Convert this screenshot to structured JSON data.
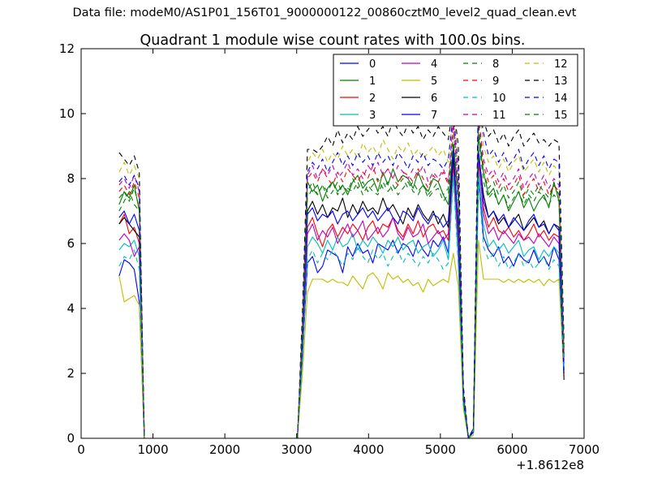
{
  "figure": {
    "suptitle": "Data file: modeM0/AS1P01_156T01_9000000122_00860cztM0_level2_quad_clean.evt"
  },
  "chart_data": {
    "type": "line",
    "title": "Quadrant 1 module wise count rates with 100.0s bins.",
    "xlabel": "",
    "ylabel": "",
    "x_offset_label": "+1.8612e8",
    "xlim": [
      0,
      7000
    ],
    "ylim": [
      0,
      12
    ],
    "xticks": [
      0,
      1000,
      2000,
      3000,
      4000,
      5000,
      6000,
      7000
    ],
    "xtick_labels": [
      "0",
      "1000",
      "2000",
      "3000",
      "4000",
      "5000",
      "6000",
      "7000"
    ],
    "yticks": [
      0,
      2,
      4,
      6,
      8,
      10,
      12
    ],
    "ytick_labels": [
      "0",
      "2",
      "4",
      "6",
      "8",
      "10",
      "12"
    ],
    "grid": false,
    "legend_position": "top-right",
    "legend_columns": 4,
    "x": [
      530,
      600,
      670,
      740,
      810,
      880,
      950,
      1050,
      3010,
      3080,
      3150,
      3220,
      3290,
      3360,
      3430,
      3500,
      3570,
      3640,
      3710,
      3780,
      3850,
      3920,
      3990,
      4060,
      4130,
      4200,
      4270,
      4340,
      4410,
      4480,
      4550,
      4620,
      4690,
      4760,
      4830,
      4900,
      4970,
      5040,
      5110,
      5180,
      5250,
      5320,
      5390,
      5460,
      5530,
      5600,
      5670,
      5740,
      5810,
      5880,
      5950,
      6020,
      6090,
      6160,
      6230,
      6300,
      6370,
      6440,
      6510,
      6580,
      6650,
      6720
    ],
    "series": [
      {
        "name": "0",
        "color": "#0000ff",
        "dash": "solid",
        "values": [
          5.0,
          5.5,
          5.4,
          5.2,
          4.2,
          0.0,
          0.0,
          0.0,
          0.0,
          2.5,
          5.4,
          5.6,
          5.1,
          5.3,
          5.8,
          5.7,
          5.6,
          5.1,
          5.9,
          5.6,
          6.0,
          5.7,
          5.8,
          5.4,
          6.0,
          5.9,
          5.8,
          6.1,
          5.7,
          6.0,
          5.9,
          5.6,
          6.1,
          5.8,
          5.6,
          6.1,
          5.9,
          6.2,
          5.7,
          8.8,
          5.5,
          1.0,
          0.0,
          0.2,
          8.0,
          6.2,
          5.8,
          5.6,
          5.9,
          5.4,
          5.6,
          5.3,
          5.7,
          5.5,
          5.4,
          5.8,
          5.4,
          5.6,
          5.3,
          5.9,
          5.5,
          2.0
        ]
      },
      {
        "name": "1",
        "color": "#008000",
        "dash": "solid",
        "values": [
          7.2,
          7.6,
          7.4,
          7.8,
          7.0,
          0.0,
          0.0,
          0.0,
          0.0,
          3.2,
          7.9,
          7.6,
          7.8,
          7.3,
          7.7,
          7.9,
          7.6,
          7.8,
          7.5,
          7.9,
          8.1,
          7.7,
          7.9,
          8.0,
          7.6,
          8.2,
          7.8,
          8.3,
          7.9,
          8.1,
          8.0,
          7.7,
          8.2,
          7.8,
          7.6,
          8.0,
          7.9,
          7.5,
          7.2,
          9.0,
          7.4,
          1.3,
          0.0,
          0.3,
          9.3,
          8.2,
          7.5,
          7.7,
          7.2,
          7.5,
          7.0,
          7.3,
          7.6,
          7.1,
          7.4,
          7.0,
          7.3,
          7.5,
          7.1,
          7.9,
          7.3,
          2.5
        ]
      },
      {
        "name": "2",
        "color": "#ff0000",
        "dash": "solid",
        "values": [
          6.6,
          6.9,
          6.3,
          6.5,
          6.0,
          0.0,
          0.0,
          0.0,
          0.0,
          2.8,
          6.5,
          6.8,
          6.3,
          5.9,
          6.4,
          6.6,
          6.2,
          6.5,
          6.3,
          6.6,
          6.4,
          6.1,
          6.5,
          6.7,
          6.3,
          6.6,
          6.5,
          6.8,
          6.4,
          6.2,
          6.6,
          6.3,
          6.7,
          6.2,
          6.5,
          6.6,
          6.3,
          6.4,
          6.1,
          8.4,
          6.2,
          1.2,
          0.0,
          0.2,
          8.5,
          7.1,
          6.5,
          6.8,
          6.4,
          6.3,
          6.5,
          6.2,
          6.4,
          6.1,
          6.3,
          6.6,
          6.2,
          6.4,
          6.1,
          6.3,
          6.2,
          2.4
        ]
      },
      {
        "name": "3",
        "color": "#00bfbf",
        "dash": "solid",
        "values": [
          5.8,
          6.0,
          5.9,
          6.1,
          5.6,
          0.0,
          0.0,
          0.0,
          0.0,
          2.6,
          5.9,
          6.2,
          6.0,
          5.7,
          6.1,
          5.8,
          6.2,
          5.9,
          6.0,
          6.3,
          5.8,
          6.1,
          5.9,
          6.2,
          6.0,
          5.7,
          6.1,
          5.9,
          6.2,
          5.8,
          6.0,
          6.1,
          5.7,
          5.9,
          6.0,
          5.6,
          5.8,
          6.1,
          5.5,
          8.1,
          5.6,
          1.1,
          0.0,
          0.2,
          8.2,
          6.6,
          5.9,
          6.1,
          5.8,
          6.0,
          5.7,
          5.9,
          6.1,
          5.6,
          5.8,
          5.9,
          5.5,
          5.8,
          5.6,
          5.9,
          5.7,
          2.2
        ]
      },
      {
        "name": "4",
        "color": "#bf00bf",
        "dash": "solid",
        "values": [
          6.1,
          6.3,
          6.1,
          5.6,
          5.9,
          0.0,
          0.0,
          0.0,
          0.0,
          2.7,
          6.3,
          6.6,
          6.1,
          6.4,
          6.2,
          6.5,
          6.0,
          6.3,
          6.6,
          6.2,
          6.4,
          6.7,
          6.1,
          6.3,
          6.5,
          6.2,
          6.4,
          6.8,
          6.3,
          6.1,
          6.5,
          6.2,
          6.3,
          6.6,
          6.0,
          6.2,
          6.4,
          6.1,
          6.3,
          8.6,
          6.0,
          1.2,
          0.0,
          0.2,
          8.7,
          6.9,
          6.3,
          6.5,
          6.1,
          6.4,
          6.2,
          6.0,
          6.3,
          6.1,
          6.2,
          6.0,
          6.3,
          6.1,
          5.9,
          6.2,
          6.0,
          2.3
        ]
      },
      {
        "name": "5",
        "color": "#bfbf00",
        "dash": "solid",
        "values": [
          5.0,
          4.2,
          4.3,
          4.4,
          4.1,
          0.0,
          0.0,
          0.0,
          0.0,
          2.0,
          4.5,
          4.9,
          4.9,
          4.9,
          4.8,
          4.9,
          4.8,
          4.8,
          4.7,
          5.0,
          4.8,
          4.6,
          5.0,
          5.1,
          4.9,
          4.6,
          5.1,
          4.9,
          5.0,
          4.8,
          4.9,
          4.7,
          4.8,
          4.5,
          4.9,
          4.7,
          4.8,
          4.9,
          4.8,
          5.7,
          4.7,
          0.9,
          0.0,
          0.1,
          6.1,
          4.9,
          4.9,
          4.9,
          4.9,
          4.8,
          4.9,
          4.8,
          4.9,
          4.8,
          4.9,
          4.8,
          4.9,
          4.7,
          4.9,
          4.8,
          4.9,
          1.9
        ]
      },
      {
        "name": "6",
        "color": "#000000",
        "dash": "solid",
        "values": [
          6.6,
          6.8,
          6.6,
          6.4,
          6.2,
          0.0,
          0.0,
          0.0,
          0.0,
          3.0,
          7.0,
          7.3,
          6.9,
          7.2,
          6.8,
          7.1,
          7.0,
          7.4,
          6.8,
          7.2,
          6.9,
          7.3,
          7.0,
          7.1,
          6.9,
          7.4,
          7.0,
          7.2,
          6.9,
          6.6,
          7.1,
          6.8,
          7.2,
          6.9,
          6.7,
          7.0,
          6.6,
          6.9,
          6.5,
          8.7,
          6.6,
          1.2,
          0.0,
          0.2,
          8.8,
          7.5,
          6.8,
          7.0,
          6.6,
          6.8,
          6.5,
          6.7,
          6.9,
          6.4,
          6.6,
          6.8,
          6.5,
          6.7,
          6.3,
          6.6,
          6.5,
          1.8
        ]
      },
      {
        "name": "7",
        "color": "#0000ff",
        "dash": "solid",
        "values": [
          6.8,
          7.0,
          6.6,
          6.9,
          6.4,
          0.0,
          0.0,
          0.0,
          0.0,
          3.0,
          6.9,
          7.1,
          6.7,
          6.9,
          6.8,
          7.0,
          6.6,
          6.9,
          7.0,
          6.7,
          6.9,
          7.1,
          6.8,
          7.0,
          6.7,
          6.9,
          7.1,
          6.8,
          6.6,
          7.0,
          6.9,
          6.7,
          7.1,
          6.8,
          6.6,
          6.9,
          6.8,
          6.5,
          6.7,
          8.9,
          6.5,
          1.2,
          0.0,
          0.2,
          8.9,
          7.3,
          6.8,
          7.0,
          6.7,
          6.9,
          6.5,
          6.8,
          6.6,
          6.4,
          6.7,
          6.9,
          6.5,
          6.6,
          6.3,
          6.6,
          6.4,
          2.1
        ]
      },
      {
        "name": "8",
        "color": "#008000",
        "dash": "dashed",
        "values": [
          7.0,
          7.3,
          7.6,
          7.2,
          7.0,
          0.0,
          0.0,
          0.0,
          0.0,
          3.2,
          7.4,
          7.7,
          7.5,
          7.8,
          7.4,
          7.6,
          7.9,
          7.5,
          7.7,
          7.6,
          7.9,
          7.5,
          7.8,
          7.6,
          7.5,
          7.9,
          7.6,
          7.8,
          7.5,
          7.7,
          7.9,
          7.6,
          7.5,
          7.8,
          7.4,
          7.6,
          7.7,
          7.3,
          7.5,
          9.1,
          7.2,
          1.3,
          0.0,
          0.3,
          9.3,
          7.9,
          7.4,
          7.6,
          7.2,
          7.5,
          7.1,
          7.4,
          7.6,
          7.2,
          7.5,
          7.3,
          7.6,
          7.4,
          7.2,
          7.5,
          7.3,
          2.6
        ]
      },
      {
        "name": "9",
        "color": "#ff0000",
        "dash": "dashed",
        "values": [
          7.6,
          7.8,
          7.5,
          7.9,
          7.4,
          0.0,
          0.0,
          0.0,
          0.0,
          3.4,
          8.0,
          8.2,
          7.9,
          8.3,
          8.0,
          7.8,
          8.2,
          7.9,
          8.3,
          8.1,
          7.9,
          8.2,
          8.0,
          8.4,
          7.9,
          8.1,
          8.3,
          8.0,
          7.8,
          8.2,
          8.1,
          7.9,
          8.3,
          8.0,
          7.7,
          8.1,
          7.9,
          8.2,
          7.8,
          9.6,
          7.7,
          1.4,
          0.0,
          0.3,
          9.7,
          8.4,
          7.9,
          8.1,
          7.7,
          8.0,
          7.6,
          7.8,
          8.1,
          7.5,
          7.8,
          8.0,
          7.6,
          7.9,
          7.5,
          7.8,
          7.6,
          2.7
        ]
      },
      {
        "name": "10",
        "color": "#00bfbf",
        "dash": "dashed",
        "values": [
          5.3,
          5.6,
          5.5,
          5.8,
          5.2,
          0.0,
          0.0,
          0.0,
          0.0,
          2.4,
          5.5,
          5.8,
          5.4,
          5.7,
          5.5,
          5.8,
          5.6,
          5.3,
          5.7,
          5.5,
          5.9,
          5.6,
          5.4,
          5.8,
          5.5,
          5.7,
          5.3,
          5.6,
          5.8,
          5.4,
          5.7,
          5.5,
          5.3,
          5.6,
          5.4,
          5.7,
          5.5,
          5.2,
          5.4,
          8.0,
          5.3,
          1.0,
          0.0,
          0.2,
          8.0,
          5.9,
          5.5,
          5.7,
          5.3,
          5.6,
          5.2,
          5.4,
          5.7,
          5.3,
          5.5,
          5.2,
          5.4,
          5.6,
          5.2,
          5.5,
          5.3,
          2.1
        ]
      },
      {
        "name": "11",
        "color": "#bf00bf",
        "dash": "dashed",
        "values": [
          7.8,
          8.0,
          7.7,
          8.1,
          7.6,
          0.0,
          0.0,
          0.0,
          0.0,
          3.5,
          8.1,
          8.4,
          8.0,
          8.3,
          8.1,
          8.4,
          8.0,
          8.2,
          8.5,
          8.1,
          8.3,
          8.0,
          8.4,
          8.2,
          8.5,
          8.1,
          8.3,
          8.0,
          8.4,
          8.2,
          8.0,
          8.3,
          8.1,
          8.4,
          7.9,
          8.2,
          8.0,
          8.3,
          7.9,
          9.8,
          7.8,
          1.4,
          0.0,
          0.3,
          9.9,
          8.6,
          8.1,
          8.3,
          7.9,
          8.2,
          7.8,
          8.0,
          8.3,
          7.7,
          8.0,
          8.2,
          7.8,
          8.1,
          7.7,
          8.0,
          7.8,
          2.8
        ]
      },
      {
        "name": "12",
        "color": "#bfbf00",
        "dash": "dashed",
        "values": [
          8.2,
          8.5,
          8.1,
          8.4,
          8.0,
          0.0,
          0.0,
          0.0,
          0.0,
          3.7,
          8.5,
          8.8,
          8.6,
          8.9,
          8.5,
          8.8,
          8.6,
          9.0,
          8.7,
          8.9,
          8.6,
          9.1,
          8.8,
          9.0,
          8.7,
          9.2,
          8.9,
          8.6,
          9.0,
          8.8,
          9.1,
          8.7,
          8.9,
          8.6,
          8.8,
          9.0,
          8.7,
          8.9,
          8.5,
          10.2,
          8.4,
          1.5,
          0.0,
          0.3,
          10.5,
          9.0,
          8.5,
          8.7,
          8.3,
          8.6,
          8.2,
          8.5,
          8.7,
          8.2,
          8.4,
          8.6,
          8.2,
          8.5,
          8.1,
          8.4,
          8.2,
          2.9
        ]
      },
      {
        "name": "13",
        "color": "#000000",
        "dash": "dashed",
        "values": [
          8.8,
          8.6,
          8.4,
          8.7,
          8.2,
          0.0,
          0.0,
          0.0,
          0.0,
          3.9,
          8.9,
          8.9,
          8.8,
          9.0,
          9.3,
          9.0,
          9.5,
          9.1,
          9.4,
          9.2,
          9.6,
          9.3,
          9.5,
          9.7,
          9.4,
          9.6,
          9.3,
          9.8,
          9.5,
          9.3,
          9.7,
          9.4,
          9.6,
          9.2,
          9.5,
          9.3,
          9.6,
          9.4,
          9.2,
          10.3,
          9.0,
          1.6,
          0.0,
          0.3,
          11.0,
          9.8,
          9.3,
          9.5,
          9.1,
          9.4,
          9.0,
          9.3,
          9.5,
          9.0,
          9.2,
          9.4,
          9.1,
          9.2,
          9.0,
          9.2,
          9.1,
          3.0
        ]
      },
      {
        "name": "14",
        "color": "#0000ff",
        "dash": "dashed",
        "values": [
          7.9,
          8.1,
          7.8,
          8.1,
          7.7,
          0.0,
          0.0,
          0.0,
          0.0,
          3.5,
          8.2,
          8.5,
          8.3,
          8.6,
          8.2,
          8.5,
          8.8,
          8.4,
          8.7,
          8.4,
          8.8,
          8.5,
          8.7,
          8.4,
          8.8,
          8.5,
          8.7,
          8.4,
          8.8,
          8.6,
          8.3,
          8.7,
          8.5,
          8.8,
          8.4,
          8.6,
          8.5,
          8.3,
          8.6,
          10.0,
          8.3,
          1.5,
          0.0,
          0.3,
          10.4,
          9.4,
          8.7,
          8.9,
          8.5,
          8.8,
          8.4,
          8.6,
          8.9,
          8.3,
          8.6,
          8.8,
          8.4,
          8.7,
          8.3,
          8.6,
          8.5,
          2.9
        ]
      },
      {
        "name": "15",
        "color": "#008000",
        "dash": "dashed",
        "values": [
          7.4,
          7.6,
          7.3,
          7.7,
          7.1,
          0.0,
          0.0,
          0.0,
          0.0,
          3.3,
          7.6,
          7.9,
          7.5,
          7.8,
          7.6,
          7.9,
          7.5,
          7.8,
          7.6,
          8.0,
          7.7,
          7.9,
          7.6,
          7.8,
          8.0,
          7.7,
          7.9,
          7.6,
          7.8,
          8.0,
          7.7,
          7.9,
          7.6,
          7.8,
          7.5,
          7.7,
          7.9,
          7.5,
          7.7,
          9.3,
          7.4,
          1.3,
          0.0,
          0.3,
          9.6,
          8.2,
          7.7,
          7.9,
          7.5,
          7.8,
          7.4,
          7.6,
          7.9,
          7.4,
          7.7,
          7.5,
          7.8,
          7.6,
          7.4,
          7.8,
          7.5,
          2.6
        ]
      }
    ]
  }
}
